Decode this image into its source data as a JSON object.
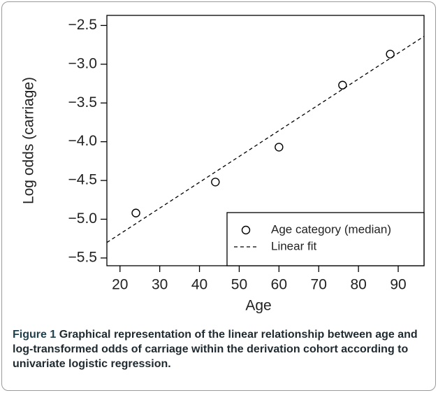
{
  "chart_data": {
    "type": "scatter",
    "xlabel": "Age",
    "ylabel": "Log odds (carriage)",
    "xlim": [
      16.7,
      96.5
    ],
    "ylim": [
      -5.6,
      -2.37
    ],
    "xticks": [
      20,
      30,
      40,
      50,
      60,
      70,
      80,
      90
    ],
    "yticks": [
      {
        "value": -2.5,
        "label": "−2.5"
      },
      {
        "value": -3.0,
        "label": "−3.0"
      },
      {
        "value": -3.5,
        "label": "−3.5"
      },
      {
        "value": -4.0,
        "label": "−4.0"
      },
      {
        "value": -4.5,
        "label": "−4.5"
      },
      {
        "value": -5.0,
        "label": "−5.0"
      },
      {
        "value": -5.5,
        "label": "−5.5"
      }
    ],
    "series": [
      {
        "name": "Age category (median)",
        "color": "#000000",
        "marker": "circle",
        "x": [
          24,
          44,
          60,
          76,
          88
        ],
        "values": [
          -4.92,
          -4.52,
          -4.07,
          -3.27,
          -2.87
        ]
      },
      {
        "name": "Linear fit",
        "color": "#000000",
        "line": "dashed",
        "x": [
          16.7,
          96.5
        ],
        "values": [
          -5.3,
          -2.64
        ]
      }
    ],
    "legend": "bottom-right"
  },
  "caption": {
    "label": "Figure 1",
    "text": "Graphical representation of the linear relationship between age and log-transformed odds of carriage within the derivation cohort according to univariate logistic regression."
  }
}
